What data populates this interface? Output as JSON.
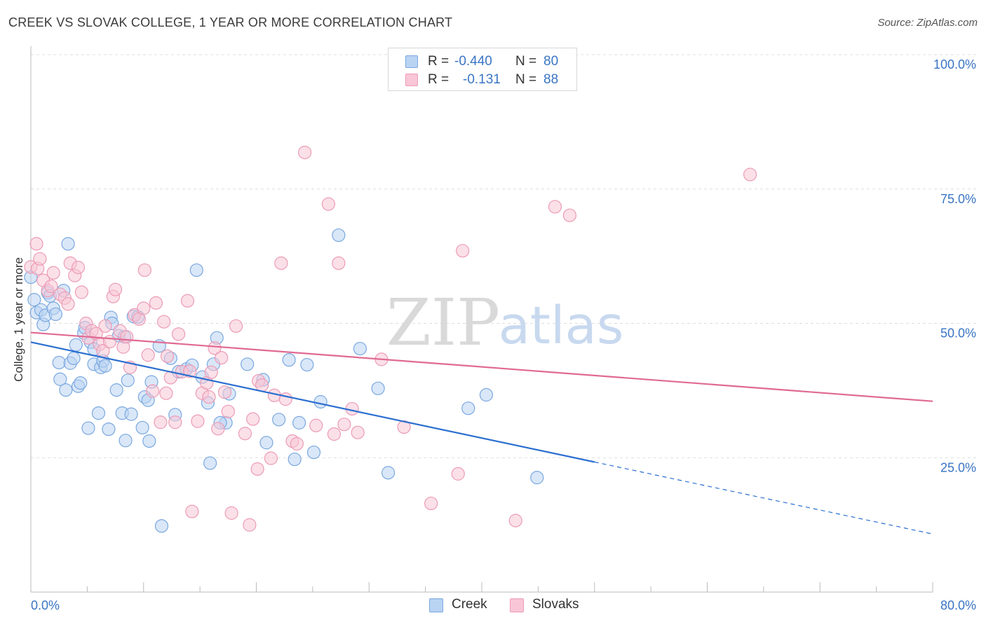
{
  "header": {
    "title": "CREEK VS SLOVAK COLLEGE, 1 YEAR OR MORE CORRELATION CHART",
    "source": "Source: ZipAtlas.com"
  },
  "watermark": {
    "zip": "ZIP",
    "atlas": "atlas"
  },
  "legend_top": {
    "rows": [
      {
        "r_label": "R =",
        "r_value": "-0.440",
        "n_label": "N =",
        "n_value": "80"
      },
      {
        "r_label": "R =",
        "r_value": "-0.131",
        "n_label": "N =",
        "n_value": "88"
      }
    ]
  },
  "legend_bottom": {
    "items": [
      "Creek",
      "Slovaks"
    ]
  },
  "colors": {
    "creek_fill": "#b9d3f3",
    "creek_stroke": "#7ba8e0",
    "creek_line": "#2b6fd0",
    "slovak_fill": "#f8c6d6",
    "slovak_stroke": "#ec9bb6",
    "slovak_line": "#e06a92",
    "axis_label": "#3a75c4",
    "grid": "#dddddd"
  },
  "chart_data": {
    "type": "scatter",
    "title": "CREEK VS SLOVAK COLLEGE, 1 YEAR OR MORE CORRELATION CHART",
    "xlabel": "",
    "ylabel": "College, 1 year or more",
    "xlim": [
      0,
      80
    ],
    "ylim": [
      0,
      100
    ],
    "x_tick_labels": [
      "0.0%",
      "80.0%"
    ],
    "y_ticks": [
      25,
      50,
      75,
      100
    ],
    "y_tick_labels": [
      "25.0%",
      "50.0%",
      "75.0%",
      "100.0%"
    ],
    "grid": true,
    "legend_position": "top-center",
    "series": [
      {
        "name": "Creek",
        "r": -0.44,
        "n": 80,
        "trend": {
          "x0": 0,
          "y0": 46.5,
          "x1": 50,
          "y1": 24.2,
          "dashed_to_x": 80,
          "dashed_to_y": 10.8
        },
        "points": [
          [
            0.0,
            58.6
          ],
          [
            0.3,
            54.4
          ],
          [
            0.5,
            52.0
          ],
          [
            0.9,
            52.5
          ],
          [
            1.1,
            49.8
          ],
          [
            1.3,
            51.5
          ],
          [
            1.5,
            55.7
          ],
          [
            1.7,
            55.1
          ],
          [
            2.0,
            52.8
          ],
          [
            2.2,
            51.7
          ],
          [
            2.5,
            42.7
          ],
          [
            2.6,
            39.6
          ],
          [
            2.9,
            56.1
          ],
          [
            3.1,
            37.6
          ],
          [
            3.5,
            42.6
          ],
          [
            3.3,
            64.8
          ],
          [
            3.8,
            43.5
          ],
          [
            4.0,
            46.0
          ],
          [
            4.2,
            38.3
          ],
          [
            4.4,
            38.9
          ],
          [
            4.7,
            48.2
          ],
          [
            4.8,
            49.2
          ],
          [
            5.1,
            30.5
          ],
          [
            5.3,
            46.5
          ],
          [
            5.6,
            45.2
          ],
          [
            5.6,
            42.4
          ],
          [
            6.0,
            33.3
          ],
          [
            6.2,
            41.8
          ],
          [
            6.4,
            43.0
          ],
          [
            6.6,
            42.1
          ],
          [
            6.9,
            30.3
          ],
          [
            7.1,
            51.1
          ],
          [
            7.2,
            50.0
          ],
          [
            7.6,
            37.6
          ],
          [
            7.8,
            47.7
          ],
          [
            8.1,
            33.3
          ],
          [
            8.3,
            47.5
          ],
          [
            8.4,
            28.2
          ],
          [
            8.6,
            39.4
          ],
          [
            8.9,
            33.1
          ],
          [
            9.1,
            51.3
          ],
          [
            9.5,
            51.2
          ],
          [
            9.9,
            30.6
          ],
          [
            10.1,
            36.3
          ],
          [
            10.4,
            35.7
          ],
          [
            10.5,
            28.1
          ],
          [
            10.7,
            39.1
          ],
          [
            11.4,
            45.8
          ],
          [
            11.6,
            12.3
          ],
          [
            12.4,
            43.5
          ],
          [
            12.8,
            33.0
          ],
          [
            13.1,
            41.0
          ],
          [
            13.8,
            41.5
          ],
          [
            14.3,
            42.2
          ],
          [
            14.7,
            59.9
          ],
          [
            15.2,
            40.0
          ],
          [
            15.7,
            35.2
          ],
          [
            15.9,
            24.0
          ],
          [
            16.2,
            42.4
          ],
          [
            16.5,
            47.3
          ],
          [
            17.3,
            31.5
          ],
          [
            17.6,
            36.9
          ],
          [
            16.8,
            31.5
          ],
          [
            19.2,
            42.4
          ],
          [
            20.6,
            39.5
          ],
          [
            20.9,
            27.8
          ],
          [
            22.0,
            32.1
          ],
          [
            22.9,
            43.2
          ],
          [
            23.4,
            24.7
          ],
          [
            23.8,
            31.5
          ],
          [
            24.5,
            42.3
          ],
          [
            25.1,
            26.0
          ],
          [
            25.7,
            35.4
          ],
          [
            27.3,
            66.4
          ],
          [
            29.2,
            45.3
          ],
          [
            30.8,
            37.9
          ],
          [
            31.7,
            22.2
          ],
          [
            38.8,
            34.2
          ],
          [
            40.4,
            36.7
          ],
          [
            44.9,
            21.3
          ]
        ]
      },
      {
        "name": "Slovaks",
        "r": -0.131,
        "n": 88,
        "trend": {
          "x0": 0,
          "y0": 48.3,
          "x1": 80,
          "y1": 35.5
        },
        "points": [
          [
            0.0,
            60.5
          ],
          [
            0.5,
            64.8
          ],
          [
            0.6,
            60.2
          ],
          [
            0.8,
            62.0
          ],
          [
            1.1,
            58.0
          ],
          [
            1.5,
            56.1
          ],
          [
            1.8,
            56.9
          ],
          [
            2.0,
            59.4
          ],
          [
            2.6,
            55.4
          ],
          [
            3.0,
            54.7
          ],
          [
            3.3,
            53.6
          ],
          [
            3.5,
            61.2
          ],
          [
            3.9,
            58.9
          ],
          [
            4.2,
            60.4
          ],
          [
            4.5,
            55.8
          ],
          [
            4.9,
            50.0
          ],
          [
            5.1,
            47.3
          ],
          [
            5.4,
            48.6
          ],
          [
            5.8,
            48.1
          ],
          [
            6.1,
            46.1
          ],
          [
            6.4,
            44.9
          ],
          [
            6.6,
            49.5
          ],
          [
            7.0,
            46.6
          ],
          [
            7.3,
            55.0
          ],
          [
            7.5,
            56.3
          ],
          [
            7.9,
            48.6
          ],
          [
            8.2,
            45.6
          ],
          [
            8.5,
            47.5
          ],
          [
            8.8,
            41.8
          ],
          [
            9.2,
            51.6
          ],
          [
            9.6,
            50.8
          ],
          [
            10.0,
            52.8
          ],
          [
            10.1,
            59.9
          ],
          [
            10.4,
            44.1
          ],
          [
            10.8,
            37.4
          ],
          [
            11.1,
            53.8
          ],
          [
            11.5,
            31.6
          ],
          [
            11.8,
            50.3
          ],
          [
            12.1,
            43.9
          ],
          [
            12.4,
            39.9
          ],
          [
            12.8,
            31.6
          ],
          [
            13.1,
            48.0
          ],
          [
            13.4,
            41.0
          ],
          [
            13.9,
            54.2
          ],
          [
            14.1,
            41.1
          ],
          [
            14.3,
            15.0
          ],
          [
            14.8,
            31.8
          ],
          [
            15.2,
            37.0
          ],
          [
            15.6,
            38.9
          ],
          [
            15.8,
            36.3
          ],
          [
            16.0,
            40.9
          ],
          [
            16.3,
            45.4
          ],
          [
            16.6,
            30.4
          ],
          [
            16.9,
            43.6
          ],
          [
            17.2,
            37.2
          ],
          [
            17.5,
            33.6
          ],
          [
            17.8,
            14.7
          ],
          [
            18.2,
            49.5
          ],
          [
            19.0,
            29.5
          ],
          [
            19.4,
            12.5
          ],
          [
            19.7,
            32.2
          ],
          [
            20.2,
            39.3
          ],
          [
            21.3,
            24.9
          ],
          [
            21.6,
            36.6
          ],
          [
            22.2,
            61.2
          ],
          [
            22.6,
            35.9
          ],
          [
            23.2,
            28.1
          ],
          [
            23.6,
            27.6
          ],
          [
            24.3,
            81.8
          ],
          [
            25.3,
            31.0
          ],
          [
            26.4,
            72.2
          ],
          [
            26.9,
            29.4
          ],
          [
            27.3,
            61.2
          ],
          [
            28.5,
            34.1
          ],
          [
            29.0,
            29.7
          ],
          [
            31.1,
            43.3
          ],
          [
            33.1,
            30.7
          ],
          [
            35.5,
            16.5
          ],
          [
            37.9,
            22.0
          ],
          [
            38.3,
            63.5
          ],
          [
            43.0,
            13.3
          ],
          [
            46.5,
            71.7
          ],
          [
            47.8,
            70.1
          ],
          [
            63.8,
            77.7
          ],
          [
            20.1,
            22.9
          ],
          [
            20.5,
            38.5
          ],
          [
            27.8,
            31.2
          ],
          [
            12.0,
            37.0
          ]
        ]
      }
    ]
  }
}
